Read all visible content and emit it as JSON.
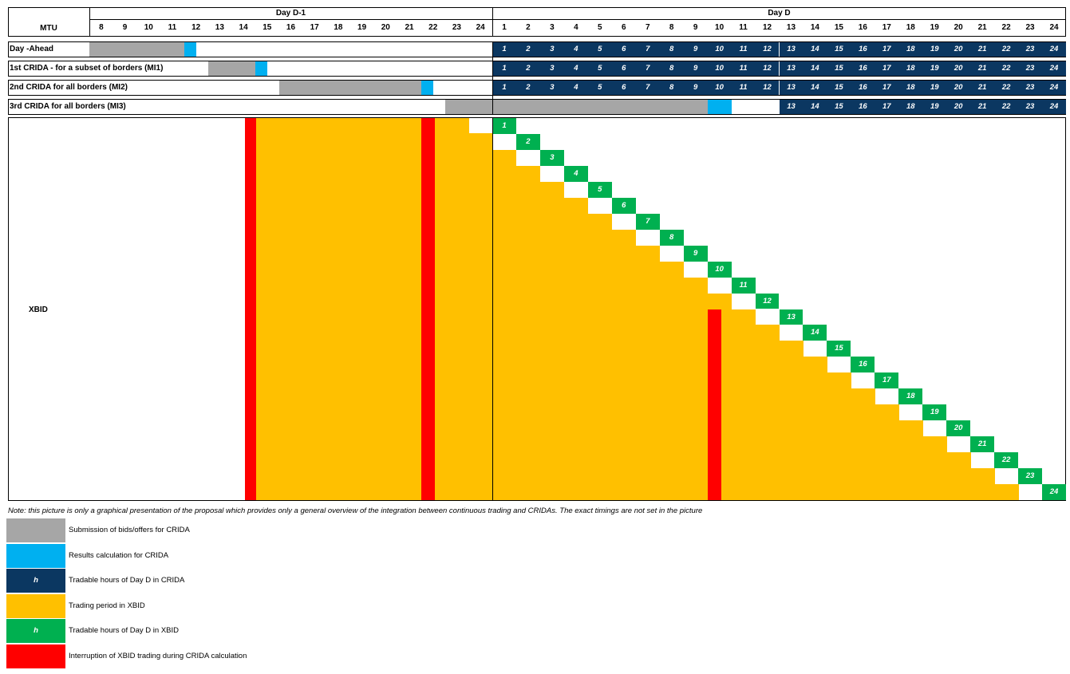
{
  "colors": {
    "submission": "#a6a6a6",
    "results": "#00b0f0",
    "cridaTradable": "#0b3761",
    "xbidTrading": "#ffc000",
    "xbidTradable": "#00b050",
    "interruption": "#ff0000"
  },
  "header": {
    "mtu_label": "MTU",
    "day_prev": "Day D-1",
    "day_d": "Day D",
    "hours_prev": [
      "8",
      "9",
      "10",
      "11",
      "12",
      "13",
      "14",
      "15",
      "16",
      "17",
      "18",
      "19",
      "20",
      "21",
      "22",
      "23",
      "24"
    ],
    "hours_d": [
      "1",
      "2",
      "3",
      "4",
      "5",
      "6",
      "7",
      "8",
      "9",
      "10",
      "11",
      "12",
      "13",
      "14",
      "15",
      "16",
      "17",
      "18",
      "19",
      "20",
      "21",
      "22",
      "23",
      "24"
    ]
  },
  "rows": [
    {
      "label": "Day -Ahead",
      "submission_hours": [
        8,
        11
      ],
      "results_hour": 12,
      "tradable_from": 1
    },
    {
      "label": "1st CRIDA - for a subset of borders (MI1)",
      "submission_hours": [
        13,
        14
      ],
      "results_hour": 15,
      "tradable_from": 1
    },
    {
      "label": "2nd CRIDA for all borders (MI2)",
      "submission_hours": [
        16,
        21
      ],
      "results_hour": 22,
      "tradable_from": 1
    },
    {
      "label": "3rd CRIDA for all borders (MI3)",
      "submission_hours": [
        23,
        24,
        1,
        9
      ],
      "results_hour": 10,
      "tradable_from": 13
    }
  ],
  "xbid": {
    "label": "XBID",
    "trading_start_prev_hour": 16,
    "interruptions": [
      "D-1 15",
      "D-1 22",
      "D 10"
    ],
    "tradable_hours": [
      "1",
      "2",
      "3",
      "4",
      "5",
      "6",
      "7",
      "8",
      "9",
      "10",
      "11",
      "12",
      "13",
      "14",
      "15",
      "16",
      "17",
      "18",
      "19",
      "20",
      "21",
      "22",
      "23",
      "24"
    ]
  },
  "note": "Note: this picture is only a graphical presentation of the proposal which provides only a general overview of the integration between continuous trading and CRIDAs. The exact timings are not set in the picture",
  "legend": [
    {
      "key": "submission",
      "swatch_text": "",
      "label": "Submission of bids/offers for CRIDA"
    },
    {
      "key": "results",
      "swatch_text": "",
      "label": "Results calculation for CRIDA"
    },
    {
      "key": "cridaTradable",
      "swatch_text": "h",
      "label": "Tradable hours of Day D in CRIDA"
    },
    {
      "key": "xbidTrading",
      "swatch_text": "",
      "label": "Trading period  in XBID"
    },
    {
      "key": "xbidTradable",
      "swatch_text": "h",
      "label": "Tradable hours of Day D in XBID"
    },
    {
      "key": "interruption",
      "swatch_text": "",
      "label": "Interruption of XBID trading during CRIDA calculation"
    }
  ]
}
